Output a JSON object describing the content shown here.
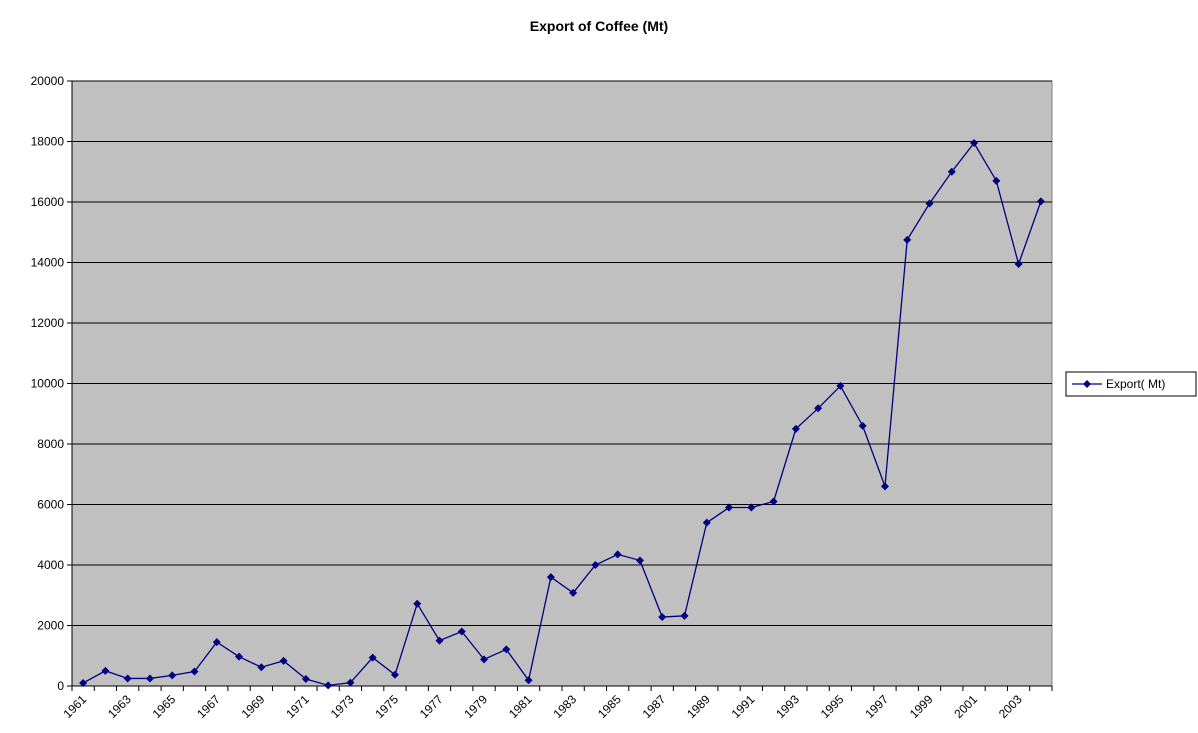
{
  "chart_data": {
    "type": "line",
    "title": "Export of Coffee (Mt)",
    "categories": [
      "1961",
      null,
      "1963",
      null,
      "1965",
      null,
      "1967",
      null,
      "1969",
      null,
      "1971",
      null,
      "1973",
      null,
      "1975",
      null,
      "1977",
      null,
      "1979",
      null,
      "1981",
      null,
      "1983",
      null,
      "1985",
      null,
      "1987",
      null,
      "1989",
      null,
      "1991",
      null,
      "1993",
      null,
      "1995",
      null,
      "1997",
      null,
      "1999",
      null,
      "2001",
      null,
      "2003",
      null
    ],
    "series": [
      {
        "name": "Export( Mt)",
        "color": "#000080",
        "values": [
          100,
          500,
          250,
          250,
          350,
          480,
          1450,
          970,
          620,
          830,
          230,
          20,
          110,
          940,
          370,
          2720,
          1500,
          1800,
          880,
          1210,
          190,
          3600,
          3080,
          4000,
          4350,
          4150,
          2280,
          2320,
          5400,
          5900,
          5900,
          6100,
          8500,
          9180,
          9920,
          8600,
          6600,
          14750,
          15950,
          17000,
          17950,
          16700,
          13950,
          16020
        ]
      }
    ],
    "ylim": [
      0,
      20000
    ],
    "yticks": [
      0,
      2000,
      4000,
      6000,
      8000,
      10000,
      12000,
      14000,
      16000,
      18000,
      20000
    ],
    "grid": true,
    "legend": "right",
    "plot_background": "#c0c0c0"
  }
}
